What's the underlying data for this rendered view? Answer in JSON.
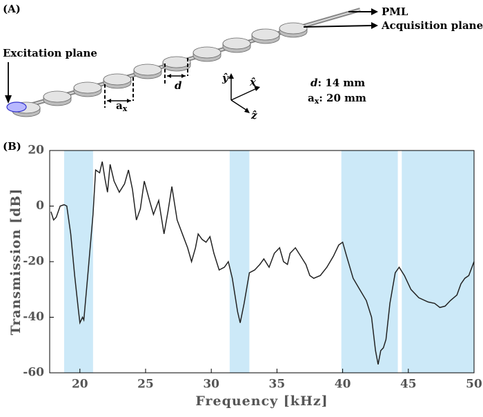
{
  "panel_a": {
    "label": "(A)",
    "pml": "PML",
    "acquisition": "Acquisition plane",
    "excitation": "Excitation plane",
    "ax_label": {
      "a": "a",
      "sub": "x"
    },
    "d_label": "d",
    "axes": {
      "y": "ŷ",
      "x": "x̂",
      "z": "ẑ"
    },
    "d_text": {
      "sym": "d",
      "rest": ": 14 mm"
    },
    "ax_text": {
      "a": "a",
      "sub": "x",
      "rest": ": 20 mm"
    }
  },
  "chart_data": {
    "type": "line",
    "panel_label": "(B)",
    "x_label": "Frequency [kHz]",
    "y_label": "Transmission [dB]",
    "xlim": [
      17.7,
      50
    ],
    "ylim": [
      -60,
      20
    ],
    "xticks": [
      20,
      25,
      30,
      35,
      40,
      45,
      50
    ],
    "yticks": [
      -60,
      -40,
      -20,
      0,
      20
    ],
    "color": "#222222",
    "shade_color": "#cce9f8",
    "shaded_regions": [
      [
        18.8,
        21.0
      ],
      [
        31.4,
        32.9
      ],
      [
        39.9,
        44.2
      ],
      [
        44.5,
        50
      ]
    ],
    "x": [
      17.8,
      18.0,
      18.2,
      18.5,
      18.8,
      19.0,
      19.3,
      19.6,
      19.9,
      20.0,
      20.2,
      20.3,
      20.6,
      21.0,
      21.2,
      21.5,
      21.7,
      21.9,
      22.1,
      22.3,
      22.6,
      23.0,
      23.4,
      23.7,
      24.0,
      24.3,
      24.6,
      24.9,
      25.3,
      25.6,
      26.0,
      26.4,
      26.7,
      27.0,
      27.4,
      27.8,
      28.2,
      28.5,
      28.8,
      29.0,
      29.3,
      29.6,
      29.9,
      30.2,
      30.6,
      31.0,
      31.3,
      31.6,
      32.0,
      32.2,
      32.5,
      32.9,
      33.3,
      33.7,
      34.0,
      34.4,
      34.8,
      35.2,
      35.5,
      35.8,
      36.0,
      36.4,
      36.8,
      37.2,
      37.5,
      37.8,
      38.3,
      38.8,
      39.3,
      39.7,
      40.0,
      40.3,
      40.8,
      41.3,
      41.8,
      42.2,
      42.5,
      42.7,
      42.9,
      43.1,
      43.3,
      43.6,
      44.0,
      44.3,
      44.7,
      45.2,
      45.8,
      46.5,
      47.0,
      47.4,
      47.8,
      48.2,
      48.7,
      49.0,
      49.3,
      49.6,
      50.0
    ],
    "values": [
      -2,
      -5,
      -4,
      0,
      0.5,
      0,
      -10,
      -25,
      -38,
      -42,
      -40,
      -41,
      -25,
      -3,
      13,
      12,
      16,
      10,
      5,
      15,
      9,
      5,
      8,
      13,
      6,
      -5,
      -1,
      9,
      2,
      -3,
      2,
      -10,
      -2,
      7,
      -5,
      -10,
      -15,
      -20,
      -15,
      -10,
      -12,
      -13,
      -11,
      -17,
      -23,
      -22,
      -20,
      -26,
      -38,
      -42,
      -35,
      -24,
      -23,
      -21,
      -19,
      -22,
      -17,
      -15,
      -20,
      -21,
      -17,
      -15,
      -18,
      -21,
      -25,
      -26,
      -25,
      -22,
      -18,
      -14,
      -13,
      -18,
      -26,
      -30,
      -34,
      -40,
      -52,
      -57,
      -52,
      -51,
      -48,
      -35,
      -24,
      -22,
      -25,
      -30,
      -33,
      -34.5,
      -35,
      -36.5,
      -36,
      -34,
      -32,
      -28,
      -26,
      -25,
      -20
    ]
  }
}
